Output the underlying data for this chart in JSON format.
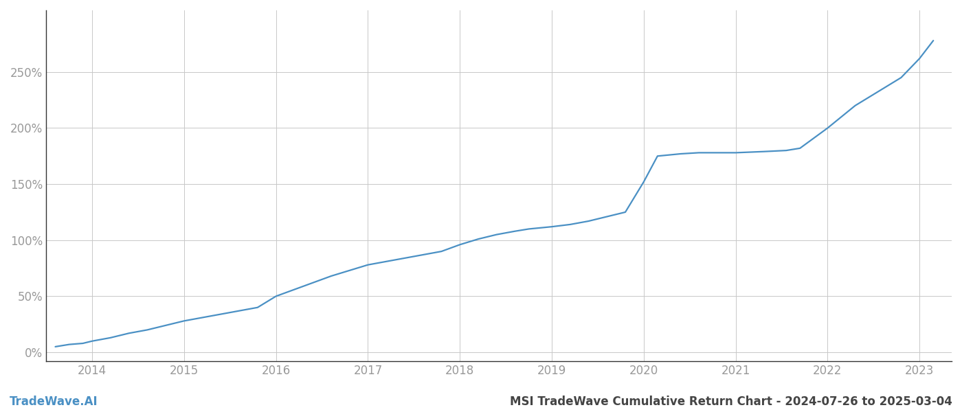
{
  "title": "MSI TradeWave Cumulative Return Chart - 2024-07-26 to 2025-03-04",
  "watermark": "TradeWave.AI",
  "line_color": "#4a90c4",
  "background_color": "#ffffff",
  "grid_color": "#c8c8c8",
  "x_values": [
    2013.6,
    2013.75,
    2013.9,
    2014.0,
    2014.2,
    2014.4,
    2014.6,
    2014.8,
    2015.0,
    2015.2,
    2015.4,
    2015.6,
    2015.8,
    2016.0,
    2016.2,
    2016.4,
    2016.6,
    2016.8,
    2017.0,
    2017.2,
    2017.4,
    2017.6,
    2017.8,
    2018.0,
    2018.2,
    2018.4,
    2018.6,
    2018.75,
    2019.0,
    2019.2,
    2019.4,
    2019.55,
    2019.65,
    2019.8,
    2020.0,
    2020.15,
    2020.4,
    2020.6,
    2020.8,
    2021.0,
    2021.3,
    2021.55,
    2021.7,
    2022.0,
    2022.3,
    2022.6,
    2022.8,
    2023.0,
    2023.15
  ],
  "y_values": [
    5,
    7,
    8,
    10,
    13,
    17,
    20,
    24,
    28,
    31,
    34,
    37,
    40,
    50,
    56,
    62,
    68,
    73,
    78,
    81,
    84,
    87,
    90,
    96,
    101,
    105,
    108,
    110,
    112,
    114,
    117,
    120,
    122,
    125,
    152,
    175,
    177,
    178,
    178,
    178,
    179,
    180,
    182,
    200,
    220,
    235,
    245,
    262,
    278
  ],
  "xlim": [
    2013.5,
    2023.35
  ],
  "ylim": [
    -8,
    305
  ],
  "xticks": [
    2014,
    2015,
    2016,
    2017,
    2018,
    2019,
    2020,
    2021,
    2022,
    2023
  ],
  "yticks": [
    0,
    50,
    100,
    150,
    200,
    250
  ],
  "axis_label_color": "#999999",
  "axis_label_fontsize": 12,
  "watermark_fontsize": 12,
  "title_fontsize": 12,
  "line_width": 1.6
}
